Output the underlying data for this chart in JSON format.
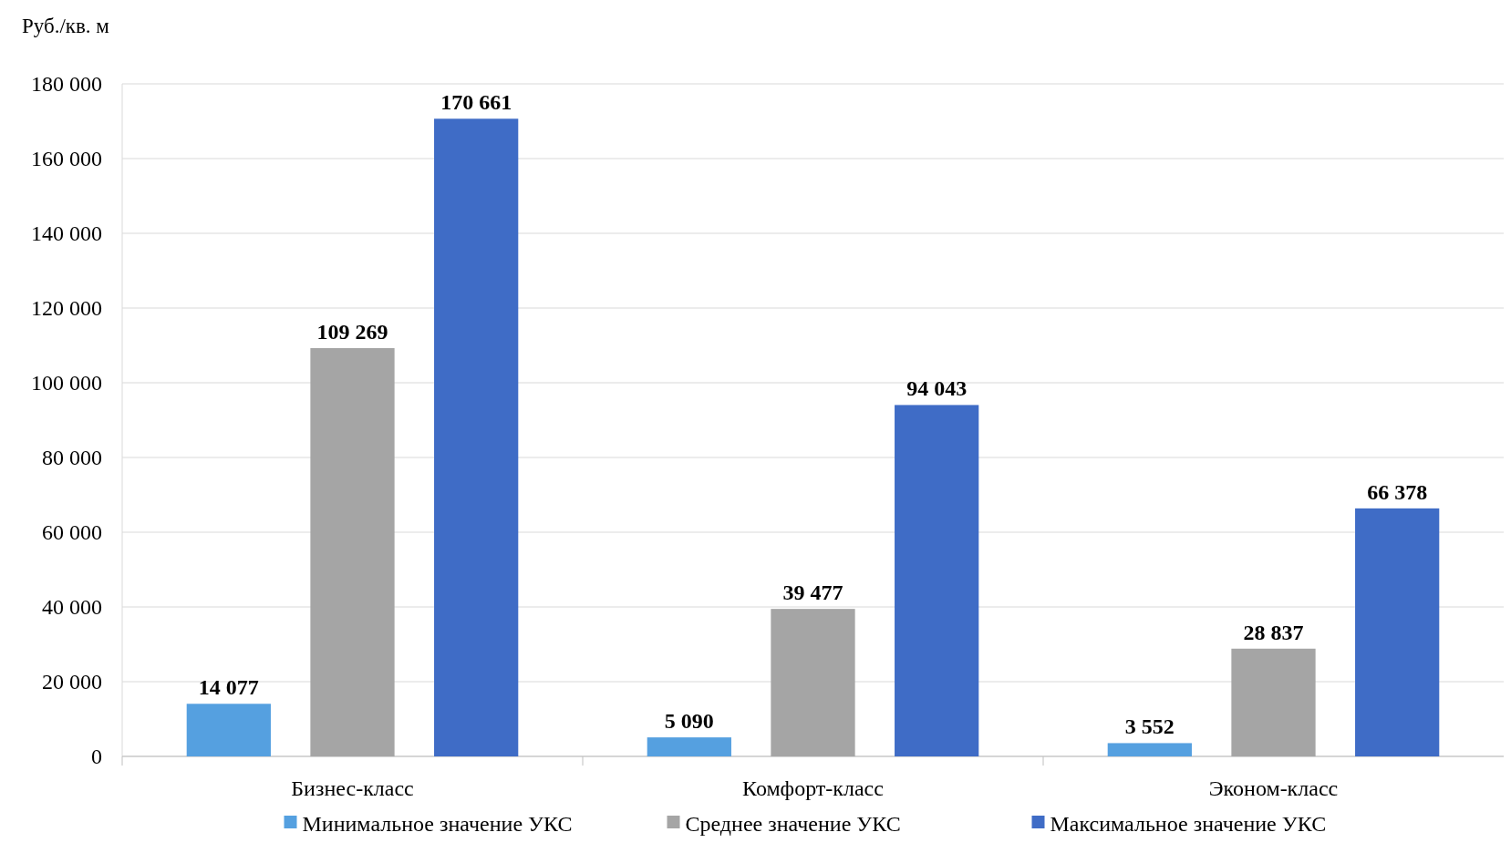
{
  "chart_data": {
    "type": "bar",
    "ylabel": "Руб./кв. м",
    "categories": [
      "Бизнес-класс",
      "Комфорт-класс",
      "Эконом-класс"
    ],
    "series": [
      {
        "name": "Минимальное значение УКС",
        "color": "#55a0e0",
        "values": [
          14077,
          5090,
          3552
        ],
        "value_labels": [
          "14 077",
          "5 090",
          "3 552"
        ]
      },
      {
        "name": "Среднее значение УКС",
        "color": "#a5a5a5",
        "values": [
          109269,
          39477,
          28837
        ],
        "value_labels": [
          "109 269",
          "39 477",
          "28 837"
        ]
      },
      {
        "name": "Максимальное значение УКС",
        "color": "#3f6cc6",
        "values": [
          170661,
          94043,
          66378
        ],
        "value_labels": [
          "170 661",
          "94 043",
          "66 378"
        ]
      }
    ],
    "ylim": [
      0,
      180000
    ],
    "yticks": [
      {
        "value": 0,
        "label": "0"
      },
      {
        "value": 20000,
        "label": "20 000"
      },
      {
        "value": 40000,
        "label": "40 000"
      },
      {
        "value": 60000,
        "label": "60 000"
      },
      {
        "value": 80000,
        "label": "80 000"
      },
      {
        "value": 100000,
        "label": "100 000"
      },
      {
        "value": 120000,
        "label": "120 000"
      },
      {
        "value": 140000,
        "label": "140 000"
      },
      {
        "value": 160000,
        "label": "160 000"
      },
      {
        "value": 180000,
        "label": "180 000"
      }
    ],
    "grid": "y",
    "legend": "bottom"
  }
}
